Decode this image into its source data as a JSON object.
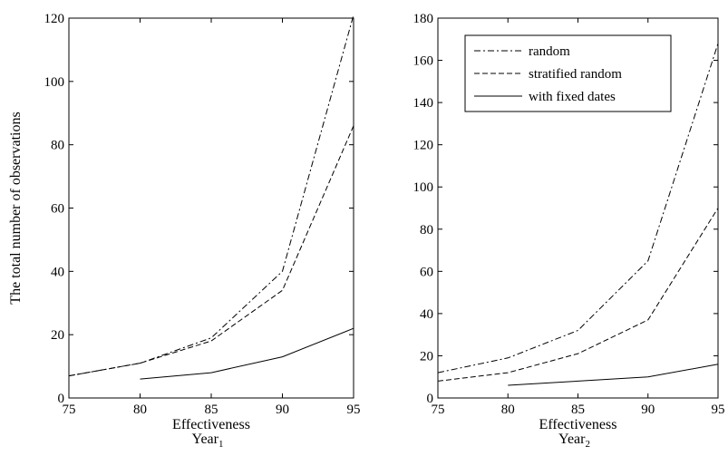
{
  "chart_data": [
    {
      "type": "line",
      "title": "",
      "xlabel": "Effectiveness",
      "xlabel2": "Year",
      "xlabel2_sub": "1",
      "ylabel": "The total number of observations",
      "xlim": [
        75,
        95
      ],
      "ylim": [
        0,
        120
      ],
      "xticks": [
        "75",
        "80",
        "85",
        "90",
        "95"
      ],
      "yticks": [
        "0",
        "20",
        "40",
        "60",
        "80",
        "100",
        "120"
      ],
      "grid": false,
      "legend": "none",
      "series": [
        {
          "name": "random",
          "dash": "dashdot",
          "x": [
            75,
            80,
            85,
            90,
            95
          ],
          "y": [
            7,
            11,
            19,
            40,
            121
          ]
        },
        {
          "name": "stratified random",
          "dash": "dashed",
          "x": [
            75,
            80,
            85,
            90,
            95
          ],
          "y": [
            7,
            11,
            18,
            34,
            86
          ]
        },
        {
          "name": "with fixed dates",
          "dash": "solid",
          "x": [
            80,
            85,
            90,
            95
          ],
          "y": [
            6,
            8,
            13,
            22
          ]
        }
      ]
    },
    {
      "type": "line",
      "title": "",
      "xlabel": "Effectiveness",
      "xlabel2": "Year",
      "xlabel2_sub": "2",
      "ylabel": "",
      "xlim": [
        75,
        95
      ],
      "ylim": [
        0,
        180
      ],
      "xticks": [
        "75",
        "80",
        "85",
        "90",
        "95"
      ],
      "yticks": [
        "0",
        "20",
        "40",
        "60",
        "80",
        "100",
        "120",
        "140",
        "160",
        "180"
      ],
      "grid": false,
      "legend": "top-left",
      "series": [
        {
          "name": "random",
          "dash": "dashdot",
          "x": [
            75,
            80,
            85,
            90,
            95
          ],
          "y": [
            12,
            19,
            32,
            65,
            168
          ]
        },
        {
          "name": "stratified random",
          "dash": "dashed",
          "x": [
            75,
            80,
            85,
            90,
            95
          ],
          "y": [
            8,
            12,
            21,
            37,
            90
          ]
        },
        {
          "name": "with fixed dates",
          "dash": "solid",
          "x": [
            80,
            85,
            90,
            95
          ],
          "y": [
            6,
            8,
            10,
            16
          ]
        }
      ]
    }
  ]
}
